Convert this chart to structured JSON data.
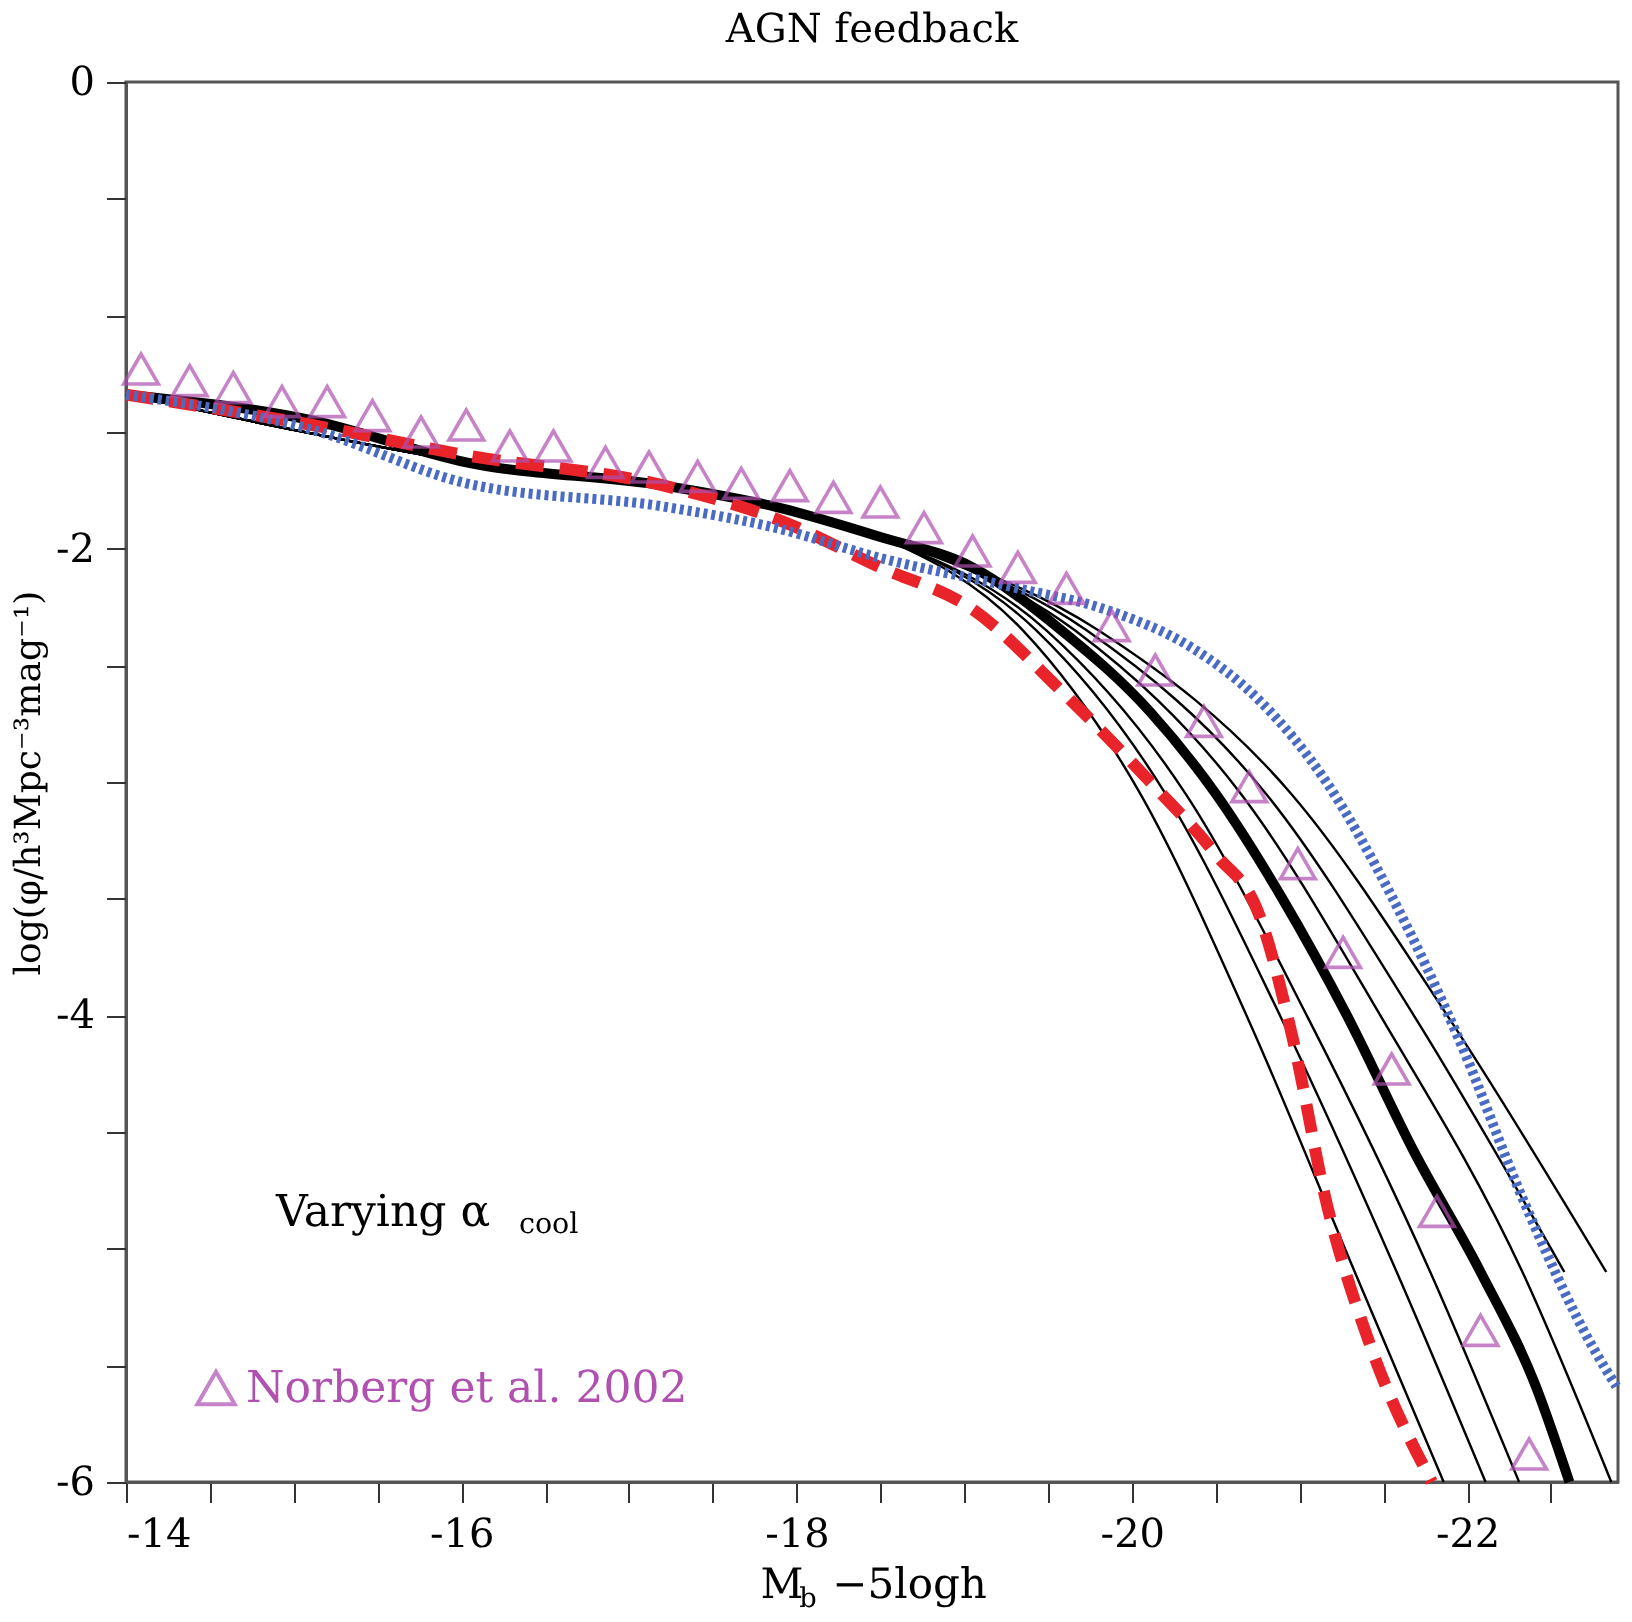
{
  "chart_data": {
    "type": "line",
    "title": "AGN feedback",
    "xlabel": "M$_{b}$ −5logh",
    "ylabel": "log(φ/h³Mpc⁻³mag⁻¹)",
    "xlim": [
      -14,
      -22.9
    ],
    "ylim": [
      -6,
      0
    ],
    "xticks": [
      -14,
      {
        "value": -14.5,
        "label": null
      },
      {
        "value": -15,
        "label": null
      },
      {
        "value": -15.5,
        "label": null
      },
      -16,
      {
        "value": -16.5,
        "label": null
      },
      {
        "value": -17,
        "label": null
      },
      {
        "value": -17.5,
        "label": null
      },
      -18,
      {
        "value": -18.5,
        "label": null
      },
      {
        "value": -19,
        "label": null
      },
      {
        "value": -19.5,
        "label": null
      },
      -20,
      {
        "value": -20.5,
        "label": null
      },
      {
        "value": -21,
        "label": null
      },
      {
        "value": -21.5,
        "label": null
      },
      -22,
      {
        "value": -22.5,
        "label": null
      }
    ],
    "yticks": [
      -6,
      {
        "value": -5.5,
        "label": null
      },
      {
        "value": -5,
        "label": null
      },
      {
        "value": -4.5,
        "label": null
      },
      -4,
      {
        "value": -3.5,
        "label": null
      },
      {
        "value": -3,
        "label": null
      },
      {
        "value": -2.5,
        "label": null
      },
      -2,
      {
        "value": -1.5,
        "label": null
      },
      {
        "value": -1,
        "label": null
      },
      {
        "value": -0.5,
        "label": null
      },
      0
    ],
    "grid": false,
    "legend": "bottom left",
    "annotations": [
      "Varying α$_{cool}$"
    ],
    "series": [
      {
        "type": "line",
        "color": "#000000",
        "line_style": "solid",
        "x": [
          -14,
          -15.11,
          -16.03,
          -17.21,
          -17.87,
          -18.5,
          -19.05,
          -19.58,
          -20.11,
          -20.5,
          -20.89,
          -21.29,
          -21.68,
          -22.08,
          -22.41,
          -22.61
        ],
        "values": [
          -1.34,
          -1.45,
          -1.63,
          -1.73,
          -1.82,
          -1.95,
          -2.08,
          -2.35,
          -2.7,
          -3.05,
          -3.49,
          -4.01,
          -4.58,
          -5.1,
          -5.59,
          -6.0
        ]
      },
      {
        "type": "line",
        "color": "#000000",
        "line_style": "solid",
        "x": [
          -14,
          -16.03,
          -17.87,
          -18.5,
          -19.35,
          -20.05,
          -20.69,
          -21.33,
          -21.86
        ],
        "values": [
          -1.34,
          -1.63,
          -1.82,
          -1.95,
          -2.35,
          -3.05,
          -4.01,
          -5.1,
          -6.0
        ]
      },
      {
        "type": "line",
        "color": "#000000",
        "line_style": "solid",
        "x": [
          -14,
          -16.03,
          -17.87,
          -18.5,
          -19.43,
          -20.2,
          -20.89,
          -21.58,
          -22.11
        ],
        "values": [
          -1.34,
          -1.63,
          -1.82,
          -1.95,
          -2.35,
          -3.05,
          -4.01,
          -5.1,
          -6.0
        ]
      },
      {
        "type": "line",
        "color": "#000000",
        "line_style": "solid",
        "x": [
          -14,
          -16.03,
          -17.87,
          -18.5,
          -19.49,
          -20.32,
          -21.05,
          -21.78,
          -22.31
        ],
        "values": [
          -1.34,
          -1.63,
          -1.82,
          -1.95,
          -2.35,
          -3.05,
          -4.01,
          -5.1,
          -6.0
        ]
      },
      {
        "type": "line",
        "color": "#000000",
        "line_style": "solid",
        "x": [
          -14,
          -16.03,
          -17.87,
          -18.5,
          -19.66,
          -20.65,
          -21.49,
          -22.33,
          -22.86
        ],
        "values": [
          -1.34,
          -1.63,
          -1.82,
          -1.95,
          -2.35,
          -3.05,
          -4.01,
          -5.1,
          -6.0
        ]
      },
      {
        "type": "line",
        "color": "#000000",
        "line_style": "solid",
        "x": [
          -14,
          -16.03,
          -17.87,
          -18.5,
          -19.73,
          -20.8,
          -21.69,
          -22.58
        ],
        "values": [
          -1.34,
          -1.63,
          -1.82,
          -1.95,
          -2.35,
          -3.05,
          -4.01,
          -5.1
        ]
      },
      {
        "type": "line",
        "color": "#000000",
        "line_style": "solid",
        "x": [
          -14,
          -16.03,
          -17.87,
          -18.5,
          -19.8,
          -20.95,
          -21.89,
          -22.83
        ],
        "values": [
          -1.34,
          -1.63,
          -1.82,
          -1.95,
          -2.35,
          -3.05,
          -4.01,
          -5.1
        ]
      },
      {
        "type": "line",
        "color": "#e8232a",
        "line_style": "dashed",
        "x": [
          -14,
          -15.11,
          -16.03,
          -17.21,
          -17.87,
          -18.5,
          -19.05,
          -19.58,
          -20.11,
          -20.5,
          -20.76,
          -20.96,
          -21.16,
          -21.42,
          -21.79
        ],
        "values": [
          -1.34,
          -1.47,
          -1.6,
          -1.73,
          -1.87,
          -2.08,
          -2.26,
          -2.61,
          -3.0,
          -3.31,
          -3.57,
          -4.1,
          -4.8,
          -5.41,
          -6.0
        ]
      },
      {
        "type": "line",
        "color": "#4a6bc4",
        "line_style": "dotted",
        "x": [
          -14,
          -15.11,
          -16.03,
          -17.21,
          -17.87,
          -18.5,
          -19.32,
          -19.84,
          -20.37,
          -20.76,
          -21.16,
          -21.55,
          -21.95,
          -22.34,
          -22.74,
          -22.89
        ],
        "values": [
          -1.34,
          -1.49,
          -1.72,
          -1.82,
          -1.91,
          -2.04,
          -2.17,
          -2.26,
          -2.43,
          -2.65,
          -3.0,
          -3.49,
          -4.1,
          -4.8,
          -5.41,
          -5.59
        ]
      },
      {
        "type": "scatter",
        "name": "Norberg et al. 2002",
        "color": "#b050b0",
        "marker": "triangle",
        "x": [
          -14.09,
          -14.38,
          -14.64,
          -14.93,
          -15.2,
          -15.47,
          -15.76,
          -16.03,
          -16.29,
          -16.55,
          -16.86,
          -17.12,
          -17.41,
          -17.67,
          -17.96,
          -18.22,
          -18.5,
          -18.76,
          -19.05,
          -19.32,
          -19.61,
          -19.88,
          -20.14,
          -20.43,
          -20.7,
          -20.99,
          -21.26,
          -21.55,
          -21.82,
          -22.08,
          -22.37
        ],
        "values": [
          -1.23,
          -1.28,
          -1.31,
          -1.37,
          -1.37,
          -1.43,
          -1.5,
          -1.47,
          -1.56,
          -1.56,
          -1.63,
          -1.65,
          -1.69,
          -1.72,
          -1.73,
          -1.78,
          -1.8,
          -1.91,
          -2.01,
          -2.08,
          -2.17,
          -2.33,
          -2.52,
          -2.74,
          -3.02,
          -3.35,
          -3.73,
          -4.23,
          -4.84,
          -5.35,
          -5.88
        ]
      }
    ]
  }
}
